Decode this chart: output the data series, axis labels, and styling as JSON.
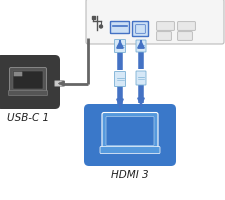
{
  "bg_color": "#ffffff",
  "cable_blue": "#4472c4",
  "cable_light": "#adc8e6",
  "connector_fill": "#d6e8f7",
  "connector_border": "#7ab0d4",
  "panel_fill": "#f5f5f5",
  "panel_border": "#bbbbbb",
  "port_hdmi_fill": "#cce0f5",
  "port_hdmi_border": "#4472c4",
  "port_usbb_fill": "#cce0f5",
  "port_usbb_border": "#4472c4",
  "port_grey_fill": "#e8e8e8",
  "port_grey_border": "#aaaaaa",
  "laptop_hdmi_bg": "#3a78c9",
  "laptop_hdmi_border": "#2a5a9a",
  "laptop_dark_bg": "#3a3a3a",
  "laptop_dark_border": "#555555",
  "label_hdmi": "HDMI 3",
  "label_usbc": "USB-C 1",
  "text_color": "#222222",
  "arrow_color": "#4472c4",
  "usb_sym_color": "#555555",
  "cable_dark": "#666666"
}
